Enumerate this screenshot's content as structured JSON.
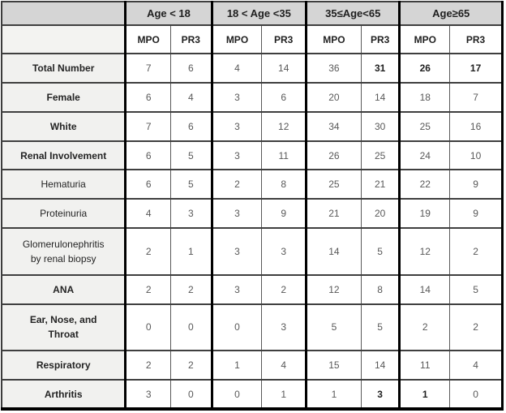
{
  "table": {
    "title_semantic": "MPO vs PR3 counts by age group",
    "corner_label": "",
    "column_groups": [
      {
        "label": "Age < 18"
      },
      {
        "label": "18 < Age <35"
      },
      {
        "label": "35≤Age<65"
      },
      {
        "label": "Age≥65"
      }
    ],
    "subheaders": [
      "MPO",
      "PR3",
      "MPO",
      "PR3",
      "MPO",
      "PR3",
      "MPO",
      "PR3"
    ],
    "rows": [
      {
        "label": "Total Number",
        "emphasis": true,
        "values": [
          7,
          6,
          4,
          14,
          36,
          31,
          26,
          17
        ],
        "bold_cells": [
          5,
          6,
          7
        ]
      },
      {
        "label": "Female",
        "emphasis": true,
        "values": [
          6,
          4,
          3,
          6,
          20,
          14,
          18,
          7
        ],
        "bold_cells": []
      },
      {
        "label": "White",
        "emphasis": true,
        "values": [
          7,
          6,
          3,
          12,
          34,
          30,
          25,
          16
        ],
        "bold_cells": []
      },
      {
        "label": "Renal Involvement",
        "emphasis": true,
        "values": [
          6,
          5,
          3,
          11,
          26,
          25,
          24,
          10
        ],
        "bold_cells": []
      },
      {
        "label": "Hematuria",
        "emphasis": false,
        "values": [
          6,
          5,
          2,
          8,
          25,
          21,
          22,
          9
        ],
        "bold_cells": []
      },
      {
        "label": "Proteinuria",
        "emphasis": false,
        "values": [
          4,
          3,
          3,
          9,
          21,
          20,
          19,
          9
        ],
        "bold_cells": []
      },
      {
        "label": "Glomerulonephritis\nby renal biopsy",
        "emphasis": false,
        "values": [
          2,
          1,
          3,
          3,
          14,
          5,
          12,
          2
        ],
        "bold_cells": []
      },
      {
        "label": "ANA",
        "emphasis": true,
        "values": [
          2,
          2,
          3,
          2,
          12,
          8,
          14,
          5
        ],
        "bold_cells": []
      },
      {
        "label": "Ear, Nose, and\nThroat",
        "emphasis": true,
        "values": [
          0,
          0,
          0,
          3,
          5,
          5,
          2,
          2
        ],
        "bold_cells": []
      },
      {
        "label": "Respiratory",
        "emphasis": true,
        "values": [
          2,
          2,
          1,
          4,
          15,
          14,
          11,
          4
        ],
        "bold_cells": []
      },
      {
        "label": "Arthritis",
        "emphasis": true,
        "values": [
          3,
          0,
          0,
          1,
          1,
          3,
          1,
          0
        ],
        "bold_cells": [
          5,
          6
        ]
      }
    ]
  },
  "colors": {
    "group_header_bg": "#d5d5d5",
    "label_column_bg": "#f1f1ef",
    "data_cell_bg": "#ffffff",
    "thick_border": "#000000",
    "row_border": "#3f3f3f",
    "number_text": "#595959",
    "bold_text": "#1f1f1f"
  }
}
